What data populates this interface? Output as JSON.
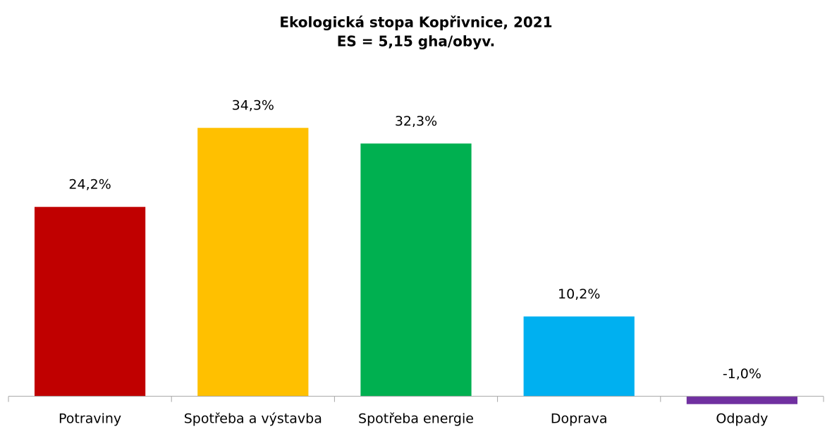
{
  "chart_data": {
    "type": "bar",
    "title": "Ekologická stopa Kopřivnice, 2021",
    "subtitle": "ES = 5,15 gha/obyv.",
    "categories": [
      "Potraviny",
      "Spotřeba a výstavba",
      "Spotřeba energie",
      "Doprava",
      "Odpady"
    ],
    "values": [
      24.2,
      34.3,
      32.3,
      10.2,
      -1.0
    ],
    "value_labels": [
      "24,2%",
      "34,3%",
      "32,3%",
      "10,2%",
      "-1,0%"
    ],
    "colors": [
      "#c00000",
      "#ffc000",
      "#00b050",
      "#00b0f0",
      "#7030a0"
    ],
    "ylim": [
      -4,
      40
    ]
  }
}
